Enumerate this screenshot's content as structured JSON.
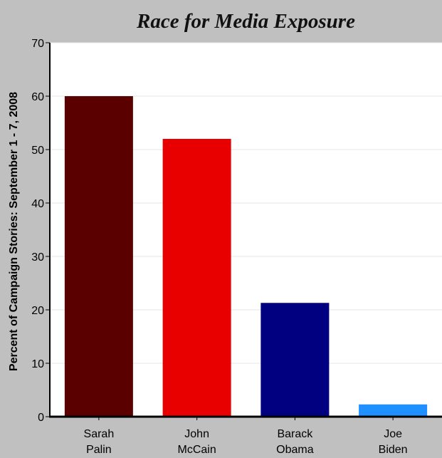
{
  "chart_data": {
    "type": "bar",
    "title": "Race for Media Exposure",
    "xlabel": "",
    "ylabel": "Percent of Campaign Stories: September 1 - 7, 2008",
    "ylim": [
      0,
      70
    ],
    "yticks": [
      0,
      10,
      20,
      30,
      40,
      50,
      60,
      70
    ],
    "grid": true,
    "categories": [
      {
        "line1": "Sarah",
        "line2": "Palin"
      },
      {
        "line1": "John",
        "line2": "McCain"
      },
      {
        "line1": "Barack",
        "line2": "Obama"
      },
      {
        "line1": "Joe",
        "line2": "Biden"
      }
    ],
    "values": [
      60,
      52,
      21.3,
      2.3
    ],
    "colors": [
      "#5a0000",
      "#e80000",
      "#000080",
      "#1e90ff"
    ]
  }
}
